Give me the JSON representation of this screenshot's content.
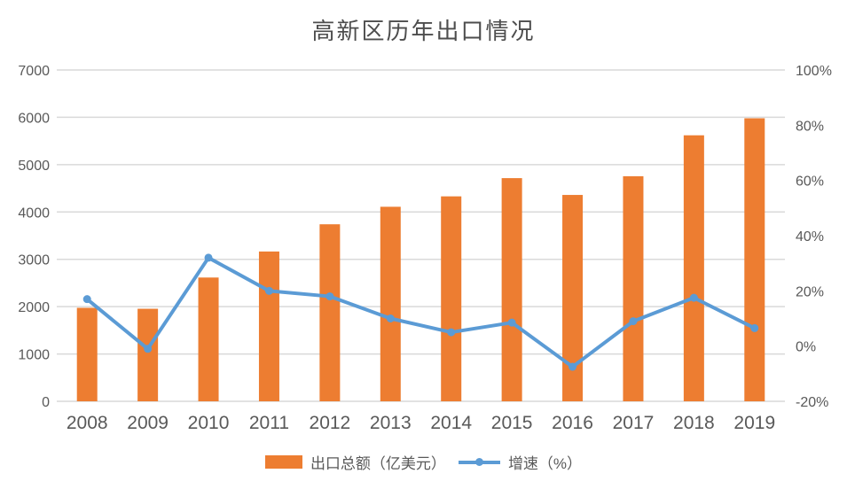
{
  "chart_data": {
    "type": "combo-bar-line",
    "title": "高新区历年出口情况",
    "categories": [
      "2008",
      "2009",
      "2010",
      "2011",
      "2012",
      "2013",
      "2014",
      "2015",
      "2016",
      "2017",
      "2018",
      "2019"
    ],
    "series": [
      {
        "name": "出口总额（亿美元）",
        "type": "bar",
        "axis": "left",
        "color": "#ED7D31",
        "values": [
          1975,
          1955,
          2615,
          3165,
          3740,
          4110,
          4330,
          4715,
          4360,
          4755,
          5620,
          5980
        ]
      },
      {
        "name": "增速（%）",
        "type": "line",
        "axis": "right",
        "color": "#5B9BD5",
        "values": [
          17,
          -1,
          32,
          20,
          18,
          10,
          5,
          8.5,
          -7.5,
          9,
          17.5,
          6.5
        ]
      }
    ],
    "left_axis": {
      "min": 0,
      "max": 7000,
      "tick_values": [
        0,
        1000,
        2000,
        3000,
        4000,
        5000,
        6000,
        7000
      ],
      "tick_labels": [
        "0",
        "1000",
        "2000",
        "3000",
        "4000",
        "5000",
        "6000",
        "7000"
      ]
    },
    "right_axis": {
      "min": -20,
      "max": 100,
      "tick_values": [
        -20,
        0,
        20,
        40,
        60,
        80,
        100
      ],
      "tick_labels": [
        "-20%",
        "0%",
        "20%",
        "40%",
        "60%",
        "80%",
        "100%"
      ]
    },
    "grid": true,
    "legend_position": "bottom",
    "colors": {
      "grid": "#D9D9D9",
      "axis_text": "#595959",
      "title_text": "#4d4d4d",
      "background": "#FFFFFF"
    }
  }
}
